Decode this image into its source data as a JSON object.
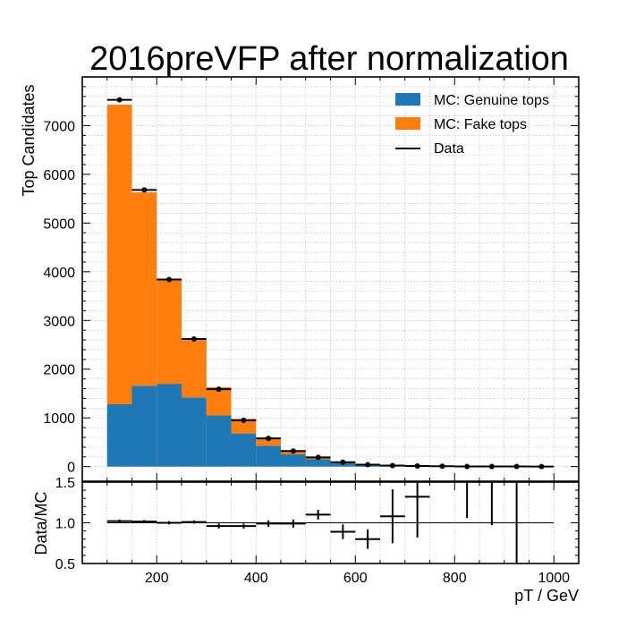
{
  "title": "2016preVFP after normalization",
  "chart_data": {
    "type": "bar",
    "stacked": true,
    "title": "2016preVFP after normalization",
    "xlabel": "pT / GeV",
    "ylabel": "Top Candidates",
    "ratio_ylabel": "Data/MC",
    "xlim": [
      50,
      1050
    ],
    "ylim": [
      -300,
      8000
    ],
    "ratio_ylim": [
      0.5,
      1.5
    ],
    "grid": true,
    "legend_position": "top-right",
    "bin_edges": [
      100,
      150,
      200,
      250,
      300,
      350,
      400,
      450,
      500,
      550,
      600,
      650,
      700,
      750,
      800,
      850,
      900,
      950,
      1000
    ],
    "series": [
      {
        "name": "MC: Genuine tops",
        "color": "#1f77b4",
        "values": [
          1280,
          1660,
          1700,
          1420,
          1050,
          680,
          430,
          250,
          150,
          70,
          30,
          15,
          8,
          5,
          3,
          2,
          1,
          1
        ]
      },
      {
        "name": "MC: Fake tops",
        "color": "#ff7f0e",
        "values": [
          6150,
          3970,
          2140,
          1180,
          580,
          300,
          150,
          80,
          40,
          20,
          10,
          6,
          3,
          2,
          1,
          1,
          0,
          0
        ]
      }
    ],
    "data": {
      "name": "Data",
      "color": "#000000",
      "values": [
        7530,
        5680,
        3840,
        2620,
        1590,
        950,
        580,
        320,
        190,
        90,
        40,
        22,
        12,
        8,
        4,
        3,
        2,
        1
      ]
    },
    "ratio": {
      "values": [
        1.02,
        1.015,
        1.0,
        1.01,
        0.96,
        0.96,
        0.99,
        0.99,
        1.1,
        0.89,
        0.8,
        1.08,
        1.32,
        null,
        null,
        null,
        null,
        null
      ],
      "errors_low": [
        0.02,
        0.02,
        0.02,
        0.02,
        0.03,
        0.03,
        0.04,
        0.05,
        0.06,
        0.09,
        0.12,
        0.33,
        0.5,
        null,
        0.43,
        0.53,
        1.5,
        null
      ],
      "errors_high": [
        0.02,
        0.02,
        0.02,
        0.02,
        0.03,
        0.03,
        0.04,
        0.05,
        0.06,
        0.09,
        0.12,
        0.33,
        0.5,
        null,
        0.6,
        0.6,
        0.6,
        null
      ],
      "upper_bars": [
        null,
        null,
        null,
        null,
        null,
        null,
        null,
        null,
        null,
        null,
        null,
        null,
        null,
        null,
        [
          1.06,
          1.5
        ],
        [
          0.97,
          1.5
        ],
        [
          0.5,
          1.5
        ],
        null
      ]
    },
    "xticks": [
      200,
      400,
      600,
      800,
      1000
    ],
    "yticks": [
      0,
      1000,
      2000,
      3000,
      4000,
      5000,
      6000,
      7000
    ],
    "ratio_yticks": [
      0.5,
      1.0,
      1.5
    ],
    "xtick_labels": [
      "200",
      "400",
      "600",
      "800",
      "1000"
    ],
    "ytick_labels": [
      "0",
      "1000",
      "2000",
      "3000",
      "4000",
      "5000",
      "6000",
      "7000"
    ],
    "ratio_ytick_labels": [
      "0.5",
      "1.0",
      "1.5"
    ]
  }
}
